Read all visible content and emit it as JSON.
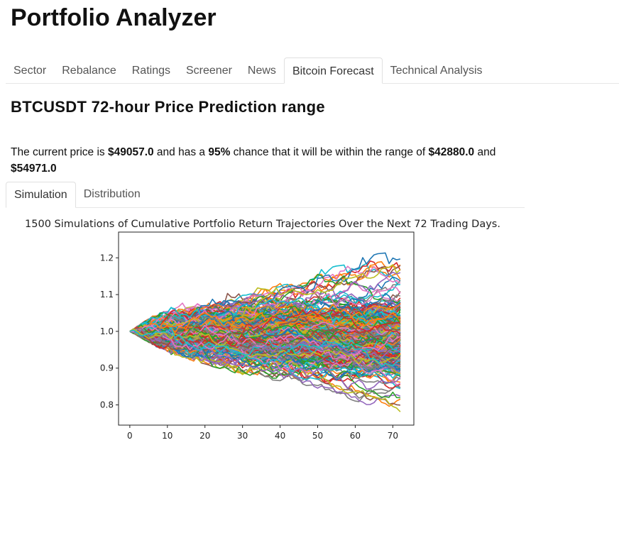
{
  "app": {
    "title": "Portfolio Analyzer"
  },
  "main_tabs": [
    {
      "label": "Sector",
      "active": false
    },
    {
      "label": "Rebalance",
      "active": false
    },
    {
      "label": "Ratings",
      "active": false
    },
    {
      "label": "Screener",
      "active": false
    },
    {
      "label": "News",
      "active": false
    },
    {
      "label": "Bitcoin Forecast",
      "active": true
    },
    {
      "label": "Technical Analysis",
      "active": false
    }
  ],
  "section": {
    "heading": "BTCUSDT 72-hour Price Prediction range",
    "summary": {
      "part1": "The current price is ",
      "current_price": "$49057.0",
      "part2": " and has a ",
      "confidence": "95%",
      "part3": " chance that it will be within the range of ",
      "lower": "$42880.0",
      "part4": " and ",
      "upper": "$54971.0"
    }
  },
  "sub_tabs": [
    {
      "label": "Simulation",
      "active": true
    },
    {
      "label": "Distribution",
      "active": false
    }
  ],
  "chart_data": {
    "type": "line",
    "title": "1500 Simulations of Cumulative Portfolio Return Trajectories Over the Next 72 Trading Days.",
    "xlabel": "",
    "ylabel": "",
    "xlim": [
      -3,
      75.6
    ],
    "ylim": [
      0.745,
      1.27
    ],
    "x_ticks": [
      0,
      10,
      20,
      30,
      40,
      50,
      60,
      70
    ],
    "y_ticks": [
      0.8,
      0.9,
      1.0,
      1.1,
      1.2
    ],
    "x_tick_labels": [
      "0",
      "10",
      "20",
      "30",
      "40",
      "50",
      "60",
      "70"
    ],
    "y_tick_labels": [
      "0.8",
      "0.9",
      "1.0",
      "1.1",
      "1.2"
    ],
    "grid": false,
    "legend": "none",
    "num_simulations": 1500,
    "num_steps": 72,
    "start_value": 1.0,
    "envelope": {
      "x": [
        0,
        10,
        20,
        30,
        40,
        50,
        60,
        70,
        72
      ],
      "upper": [
        1.0,
        1.07,
        1.1,
        1.13,
        1.16,
        1.19,
        1.23,
        1.23,
        1.23
      ],
      "lower": [
        1.0,
        0.94,
        0.91,
        0.88,
        0.86,
        0.84,
        0.81,
        0.77,
        0.77
      ]
    },
    "palette": [
      "#1f77b4",
      "#ff7f0e",
      "#2ca02c",
      "#d62728",
      "#9467bd",
      "#8c564b",
      "#e377c2",
      "#7f7f7f",
      "#bcbd22",
      "#17becf"
    ]
  }
}
